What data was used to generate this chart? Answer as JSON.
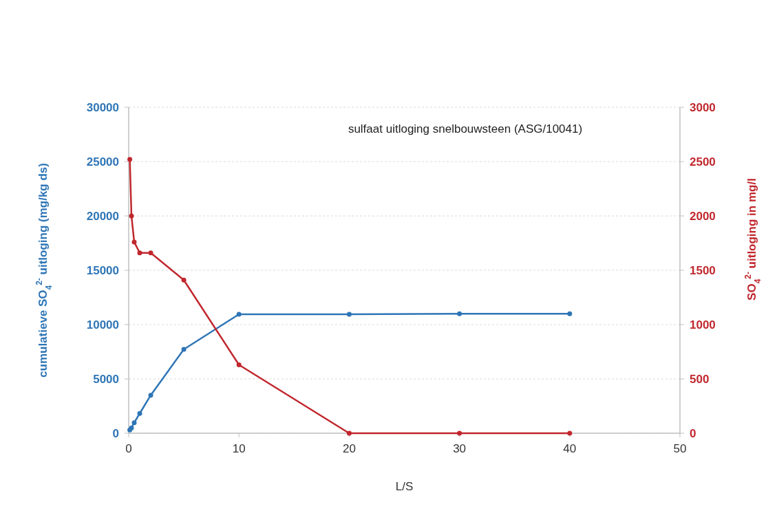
{
  "chart_data": {
    "type": "line",
    "title": "sulfaat uitloging snelbouwsteen (ASG/10041)",
    "xlabel": "L/S",
    "ylabel": "cumulatieve SO$_{4}$$^{2-}$ uitloging (mg/kg ds)",
    "y2label": "SO$_{4}$$^{2-}$ uitloging in mg/l",
    "x": [
      0.1,
      0.25,
      0.5,
      1,
      2,
      5,
      10,
      20,
      30,
      40
    ],
    "series": [
      {
        "color": "#2e75b6",
        "values": [
          300,
          490,
          970,
          1820,
          3500,
          7720,
          10950,
          10950,
          11000,
          11000
        ]
      },
      {
        "color": "#c0272d",
        "axis": "y2",
        "values": [
          2520,
          2000,
          1760,
          1660,
          1660,
          1410,
          630,
          0,
          0,
          0
        ]
      }
    ],
    "xlim": [
      0,
      50
    ],
    "xticks": [
      0,
      10,
      20,
      30,
      40,
      50
    ],
    "ylim": [
      0,
      30000
    ],
    "yticks": [
      0,
      5000,
      10000,
      15000,
      20000,
      25000,
      30000
    ],
    "y2lim": [
      0,
      3000
    ],
    "y2ticks": [
      0,
      500,
      1000,
      1500,
      2000,
      2500,
      3000
    ],
    "grid": "y",
    "marker": "circle",
    "line_style": "solid"
  }
}
